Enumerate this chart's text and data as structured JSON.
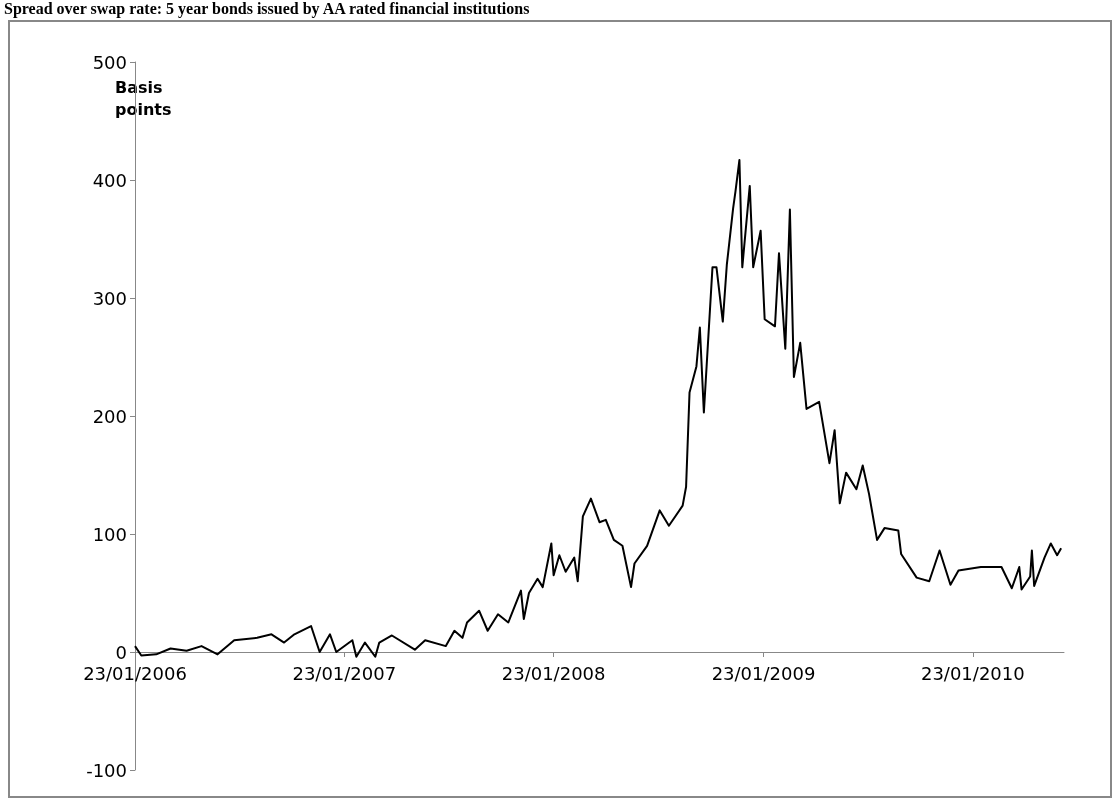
{
  "chart_data": {
    "type": "line",
    "title": "Spread over swap rate: 5 year bonds issued by AA rated financial institutions",
    "ylabel": "Basis points",
    "x": [
      "2006-01-23",
      "2006-02-03",
      "2006-03-01",
      "2006-03-26",
      "2006-04-23",
      "2006-05-19",
      "2006-06-16",
      "2006-07-15",
      "2006-08-24",
      "2006-09-18",
      "2006-10-10",
      "2006-10-28",
      "2006-11-26",
      "2006-12-11",
      "2006-12-29",
      "2007-01-09",
      "2007-02-06",
      "2007-02-13",
      "2007-02-28",
      "2007-03-18",
      "2007-03-25",
      "2007-04-16",
      "2007-05-26",
      "2007-06-13",
      "2007-07-19",
      "2007-08-03",
      "2007-08-17",
      "2007-08-25",
      "2007-09-15",
      "2007-09-30",
      "2007-10-18",
      "2007-11-05",
      "2007-11-27",
      "2007-12-02",
      "2007-12-11",
      "2007-12-26",
      "2008-01-04",
      "2008-01-19",
      "2008-01-23",
      "2008-02-02",
      "2008-02-13",
      "2008-02-28",
      "2008-03-05",
      "2008-03-14",
      "2008-03-28",
      "2008-04-12",
      "2008-04-23",
      "2008-05-07",
      "2008-05-22",
      "2008-06-06",
      "2008-06-12",
      "2008-07-04",
      "2008-07-26",
      "2008-08-11",
      "2008-09-04",
      "2008-09-10",
      "2008-09-16",
      "2008-09-28",
      "2008-10-04",
      "2008-10-11",
      "2008-10-26",
      "2008-11-02",
      "2008-11-13",
      "2008-11-20",
      "2008-12-01",
      "2008-12-05",
      "2008-12-12",
      "2008-12-17",
      "2008-12-30",
      "2009-01-05",
      "2009-01-18",
      "2009-01-25",
      "2009-02-12",
      "2009-02-19",
      "2009-03-02",
      "2009-03-10",
      "2009-03-17",
      "2009-03-28",
      "2009-04-08",
      "2009-04-30",
      "2009-05-18",
      "2009-05-27",
      "2009-06-05",
      "2009-06-16",
      "2009-07-04",
      "2009-07-15",
      "2009-07-26",
      "2009-08-09",
      "2009-08-22",
      "2009-09-15",
      "2009-09-20",
      "2009-10-17",
      "2009-11-08",
      "2009-11-26",
      "2009-12-15",
      "2009-12-29",
      "2010-02-06",
      "2010-03-14",
      "2010-04-01",
      "2010-04-14",
      "2010-04-18",
      "2010-05-03",
      "2010-05-06",
      "2010-05-10",
      "2010-05-28",
      "2010-06-08",
      "2010-06-19",
      "2010-06-26"
    ],
    "series": [
      {
        "color": "#000000",
        "values": [
          5,
          -3,
          -2,
          3,
          1,
          5,
          -2,
          10,
          12,
          15,
          8,
          15,
          22,
          0,
          15,
          0,
          10,
          -4,
          8,
          -4,
          8,
          14,
          2,
          10,
          5,
          18,
          12,
          25,
          35,
          18,
          32,
          25,
          52,
          28,
          50,
          62,
          55,
          92,
          65,
          82,
          68,
          80,
          60,
          115,
          130,
          110,
          112,
          95,
          90,
          55,
          75,
          90,
          120,
          107,
          124,
          140,
          220,
          242,
          275,
          203,
          326,
          326,
          280,
          328,
          376,
          390,
          417,
          326,
          395,
          326,
          357,
          282,
          276,
          338,
          257,
          375,
          233,
          262,
          206,
          212,
          160,
          188,
          126,
          152,
          138,
          158,
          134,
          95,
          105,
          103,
          83,
          63,
          60,
          86,
          57,
          69,
          72,
          72,
          54,
          72,
          53,
          64,
          86,
          56,
          80,
          92,
          82,
          88
        ]
      }
    ],
    "xlim": [
      "2006-01-23",
      "2010-07-01"
    ],
    "xticks": [
      {
        "value": "2006-01-23",
        "label": "23/01/2006"
      },
      {
        "value": "2007-01-23",
        "label": "23/01/2007"
      },
      {
        "value": "2008-01-23",
        "label": "23/01/2008"
      },
      {
        "value": "2009-01-23",
        "label": "23/01/2009"
      },
      {
        "value": "2010-01-23",
        "label": "23/01/2010"
      }
    ],
    "ylim": [
      -100,
      500
    ],
    "yticks": [
      -100,
      0,
      100,
      200,
      300,
      400,
      500
    ],
    "grid": false,
    "marker": "none",
    "line_style": "solid"
  }
}
